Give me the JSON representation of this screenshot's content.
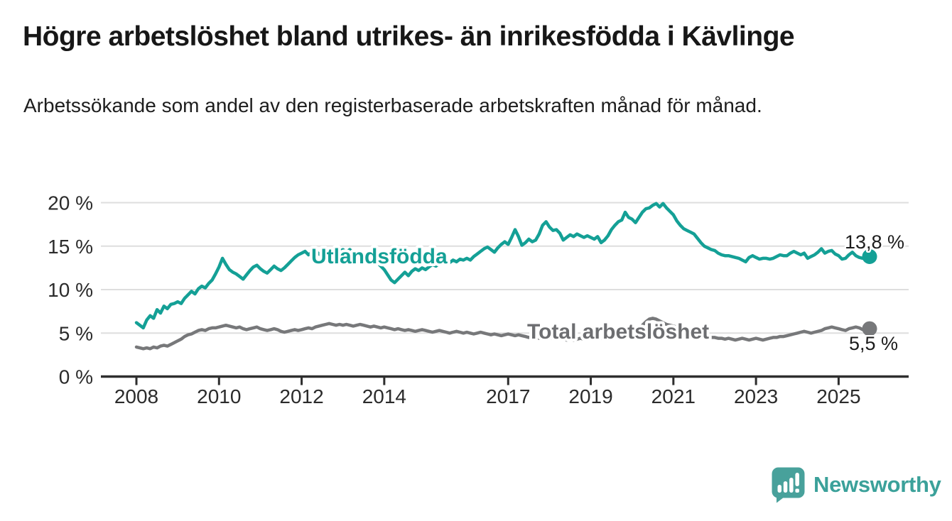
{
  "title": "Högre arbetslöshet bland utrikes- än inrikesfödda i Kävlinge",
  "subtitle": "Arbetssökande som andel av den registerbaserade arbetskraften månad för månad.",
  "branding": {
    "logo_text": "Newsworthy",
    "logo_color": "#48a19b"
  },
  "chart_data": {
    "type": "line",
    "x_unit": "month",
    "x_start": "2008-01",
    "x_end": "2025-10",
    "x_tick_years": [
      2008,
      2010,
      2012,
      2014,
      2017,
      2019,
      2021,
      2023,
      2025
    ],
    "x_tick_labels": [
      "2008",
      "2010",
      "2012",
      "2014",
      "2017",
      "2019",
      "2021",
      "2023",
      "2025"
    ],
    "y_ticks": [
      0,
      5,
      10,
      15,
      20
    ],
    "y_tick_labels": [
      "0 %",
      "5 %",
      "10 %",
      "15 %",
      "20 %"
    ],
    "ylim": [
      0,
      21
    ],
    "grid": "horizontal",
    "legend_position": "inline-labels",
    "series": [
      {
        "name": "Utlandsfödda",
        "color": "#14a096",
        "end_label": "13,8 %",
        "end_value": 13.8,
        "values": [
          6.2,
          5.9,
          5.6,
          6.5,
          7.0,
          6.7,
          7.7,
          7.3,
          8.1,
          7.8,
          8.3,
          8.4,
          8.6,
          8.4,
          9.0,
          9.4,
          9.8,
          9.5,
          10.1,
          10.4,
          10.2,
          10.7,
          11.1,
          11.8,
          12.6,
          13.6,
          12.9,
          12.3,
          12.0,
          11.8,
          11.5,
          11.2,
          11.7,
          12.2,
          12.6,
          12.8,
          12.4,
          12.1,
          11.9,
          12.3,
          12.7,
          12.4,
          12.2,
          12.5,
          12.9,
          13.3,
          13.7,
          14.0,
          14.2,
          14.4,
          14.0,
          14.3,
          14.5,
          14.1,
          13.9,
          14.1,
          14.4,
          14.2,
          14.0,
          14.4,
          14.6,
          14.3,
          14.6,
          14.2,
          14.0,
          14.2,
          14.0,
          14.1,
          13.8,
          13.5,
          13.1,
          12.7,
          12.3,
          11.7,
          11.1,
          10.8,
          11.2,
          11.6,
          12.0,
          11.6,
          12.1,
          12.4,
          12.2,
          12.5,
          12.3,
          12.6,
          12.9,
          12.7,
          13.0,
          13.2,
          12.9,
          13.1,
          13.4,
          13.2,
          13.5,
          13.4,
          13.6,
          13.4,
          13.8,
          14.1,
          14.4,
          14.7,
          14.9,
          14.6,
          14.3,
          14.8,
          15.2,
          15.5,
          15.2,
          16.0,
          16.9,
          16.1,
          15.1,
          15.4,
          15.8,
          15.5,
          15.7,
          16.4,
          17.4,
          17.8,
          17.2,
          16.8,
          16.9,
          16.5,
          15.7,
          16.0,
          16.3,
          16.1,
          16.4,
          16.2,
          16.0,
          16.2,
          16.0,
          15.8,
          16.1,
          15.4,
          15.7,
          16.2,
          16.9,
          17.4,
          17.8,
          18.0,
          18.9,
          18.3,
          18.1,
          17.7,
          18.3,
          18.9,
          19.3,
          19.4,
          19.7,
          19.9,
          19.5,
          19.9,
          19.4,
          19.0,
          18.6,
          17.9,
          17.4,
          17.0,
          16.8,
          16.6,
          16.4,
          15.9,
          15.4,
          15.0,
          14.8,
          14.6,
          14.5,
          14.2,
          14.0,
          13.9,
          13.9,
          13.8,
          13.7,
          13.6,
          13.4,
          13.2,
          13.7,
          13.9,
          13.7,
          13.5,
          13.6,
          13.6,
          13.5,
          13.6,
          13.8,
          14.0,
          13.9,
          13.9,
          14.2,
          14.4,
          14.2,
          14.0,
          14.2,
          13.6,
          13.8,
          14.0,
          14.3,
          14.7,
          14.2,
          14.4,
          14.5,
          14.1,
          13.9,
          13.5,
          13.6,
          14.0,
          14.3,
          13.9,
          13.7,
          13.6,
          13.5,
          13.8
        ]
      },
      {
        "name": "Total arbetslöshet",
        "color": "#77787a",
        "label_color": "#6d6e71",
        "end_label": "5,5 %",
        "end_value": 5.5,
        "values": [
          3.4,
          3.3,
          3.2,
          3.3,
          3.2,
          3.4,
          3.3,
          3.5,
          3.6,
          3.5,
          3.7,
          3.9,
          4.1,
          4.3,
          4.6,
          4.8,
          4.9,
          5.1,
          5.3,
          5.4,
          5.3,
          5.5,
          5.6,
          5.6,
          5.7,
          5.8,
          5.9,
          5.8,
          5.7,
          5.6,
          5.7,
          5.5,
          5.4,
          5.5,
          5.6,
          5.7,
          5.5,
          5.4,
          5.3,
          5.4,
          5.5,
          5.4,
          5.2,
          5.1,
          5.2,
          5.3,
          5.4,
          5.3,
          5.4,
          5.5,
          5.6,
          5.5,
          5.7,
          5.8,
          5.9,
          6.0,
          6.1,
          6.0,
          5.9,
          6.0,
          5.9,
          6.0,
          5.9,
          5.8,
          5.9,
          6.0,
          5.9,
          5.8,
          5.7,
          5.8,
          5.7,
          5.6,
          5.7,
          5.6,
          5.5,
          5.4,
          5.5,
          5.4,
          5.3,
          5.4,
          5.3,
          5.2,
          5.3,
          5.4,
          5.3,
          5.2,
          5.1,
          5.2,
          5.3,
          5.2,
          5.1,
          5.0,
          5.1,
          5.2,
          5.1,
          5.0,
          5.1,
          5.0,
          4.9,
          5.0,
          5.1,
          5.0,
          4.9,
          4.8,
          4.9,
          4.8,
          4.7,
          4.8,
          4.9,
          4.8,
          4.7,
          4.8,
          4.7,
          4.6,
          4.5,
          4.6,
          4.5,
          4.4,
          4.5,
          4.6,
          4.5,
          4.4,
          4.3,
          4.4,
          4.3,
          4.2,
          4.3,
          4.2,
          4.3,
          4.4,
          4.3,
          4.4,
          4.3,
          4.4,
          4.5,
          4.4,
          4.5,
          4.6,
          4.5,
          4.6,
          4.7,
          4.6,
          4.7,
          4.8,
          4.9,
          5.0,
          5.3,
          5.9,
          6.3,
          6.6,
          6.7,
          6.6,
          6.4,
          6.2,
          6.0,
          5.9,
          5.8,
          5.7,
          5.6,
          5.5,
          5.3,
          5.1,
          5.0,
          4.9,
          4.8,
          4.7,
          4.6,
          4.5,
          4.5,
          4.4,
          4.4,
          4.3,
          4.4,
          4.3,
          4.2,
          4.3,
          4.4,
          4.3,
          4.2,
          4.3,
          4.4,
          4.3,
          4.2,
          4.3,
          4.4,
          4.5,
          4.5,
          4.6,
          4.6,
          4.7,
          4.8,
          4.9,
          5.0,
          5.1,
          5.2,
          5.1,
          5.0,
          5.1,
          5.2,
          5.3,
          5.5,
          5.6,
          5.7,
          5.6,
          5.5,
          5.4,
          5.3,
          5.5,
          5.6,
          5.7,
          5.6,
          5.4,
          5.3,
          5.5
        ]
      }
    ]
  }
}
